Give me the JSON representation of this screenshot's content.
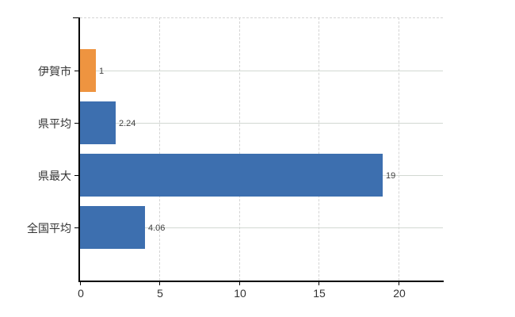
{
  "chart_data": {
    "type": "bar",
    "orientation": "horizontal",
    "title": "",
    "xlabel": "",
    "ylabel": "",
    "categories": [
      "伊賀市",
      "県平均",
      "県最大",
      "全国平均"
    ],
    "values": [
      1,
      2.24,
      19,
      4.06
    ],
    "value_labels": [
      "1",
      "2.24",
      "19",
      "4.06"
    ],
    "bar_colors": [
      "#ee9440",
      "#3d6faf",
      "#3d6faf",
      "#3d6faf"
    ],
    "x_ticks": [
      0,
      5,
      10,
      15,
      20
    ],
    "x_tick_labels": [
      "0",
      "5",
      "10",
      "15",
      "20"
    ],
    "xlim": [
      0,
      22.8
    ],
    "grid": {
      "vertical": "dashed",
      "horizontal": "solid",
      "top_border": "dashed"
    },
    "legend_position": "none",
    "colors": {
      "axis": "#000000",
      "gridline_vertical": "#d4d4d4",
      "gridline_horizontal": "#d2d8d2",
      "label_text": "#333333",
      "value_text": "#404040",
      "background": "#ffffff"
    }
  }
}
